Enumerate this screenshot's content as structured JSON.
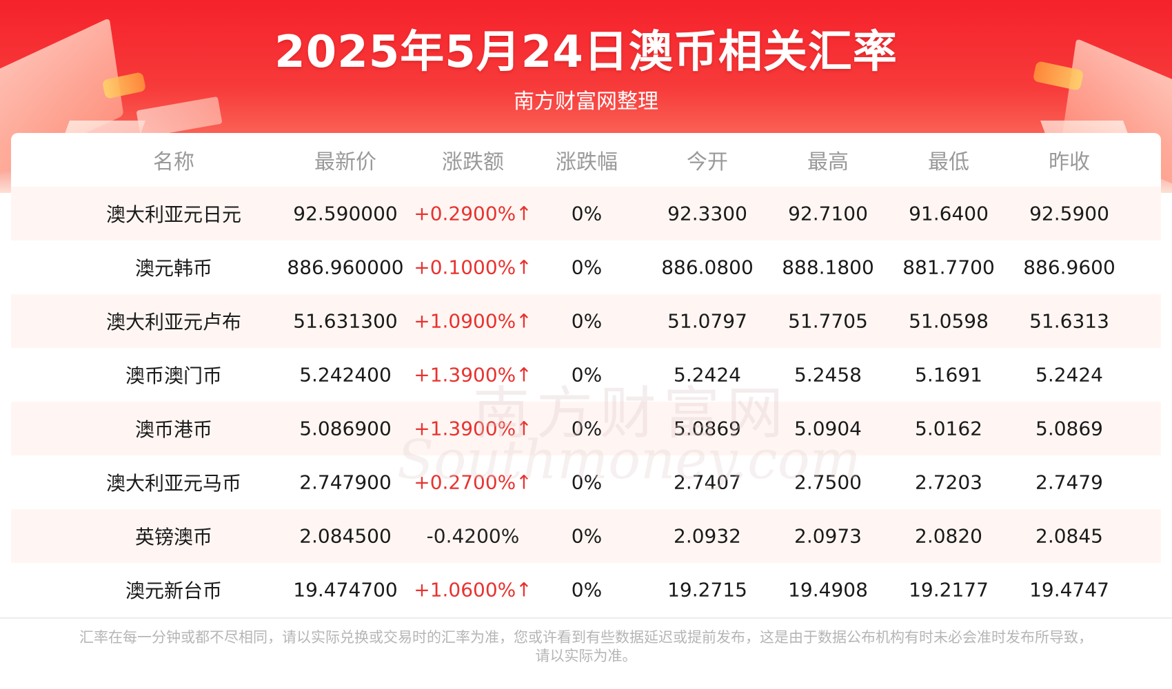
{
  "header": {
    "title": "2025年5月24日澳币相关汇率",
    "subtitle": "南方财富网整理"
  },
  "watermark": {
    "cn": "南方财富网",
    "en": "Southmoney.com"
  },
  "table": {
    "columns": [
      "名称",
      "最新价",
      "涨跌额",
      "涨跌幅",
      "今开",
      "最高",
      "最低",
      "昨收"
    ],
    "rows": [
      {
        "name": "澳大利亚元日元",
        "latest": "92.590000",
        "change": "+0.2900%↑",
        "direction": "up",
        "pct": "0%",
        "open": "92.3300",
        "high": "92.7100",
        "low": "91.6400",
        "prev": "92.5900"
      },
      {
        "name": "澳元韩币",
        "latest": "886.960000",
        "change": "+0.1000%↑",
        "direction": "up",
        "pct": "0%",
        "open": "886.0800",
        "high": "888.1800",
        "low": "881.7700",
        "prev": "886.9600"
      },
      {
        "name": "澳大利亚元卢布",
        "latest": "51.631300",
        "change": "+1.0900%↑",
        "direction": "up",
        "pct": "0%",
        "open": "51.0797",
        "high": "51.7705",
        "low": "51.0598",
        "prev": "51.6313"
      },
      {
        "name": "澳币澳门币",
        "latest": "5.242400",
        "change": "+1.3900%↑",
        "direction": "up",
        "pct": "0%",
        "open": "5.2424",
        "high": "5.2458",
        "low": "5.1691",
        "prev": "5.2424"
      },
      {
        "name": "澳币港币",
        "latest": "5.086900",
        "change": "+1.3900%↑",
        "direction": "up",
        "pct": "0%",
        "open": "5.0869",
        "high": "5.0904",
        "low": "5.0162",
        "prev": "5.0869"
      },
      {
        "name": "澳大利亚元马币",
        "latest": "2.747900",
        "change": "+0.2700%↑",
        "direction": "up",
        "pct": "0%",
        "open": "2.7407",
        "high": "2.7500",
        "low": "2.7203",
        "prev": "2.7479"
      },
      {
        "name": "英镑澳币",
        "latest": "2.084500",
        "change": "-0.4200%",
        "direction": "down",
        "pct": "0%",
        "open": "2.0932",
        "high": "2.0973",
        "low": "2.0820",
        "prev": "2.0845"
      },
      {
        "name": "澳元新台币",
        "latest": "19.474700",
        "change": "+1.0600%↑",
        "direction": "up",
        "pct": "0%",
        "open": "19.2715",
        "high": "19.4908",
        "low": "19.2177",
        "prev": "19.4747"
      }
    ]
  },
  "footnote": {
    "line1": "汇率在每一分钟或都不尽相同，请以实际兑换或交易时的汇率为准，您或许看到有些数据延迟或提前发布，这是由于数据公布机构有时未必会准时发布所导致，",
    "line2": "请以实际为准。"
  },
  "colors": {
    "banner_red": "#f5222b",
    "up_red": "#e8322f",
    "row_tint": "#fff6f3",
    "header_grey": "#999999"
  }
}
